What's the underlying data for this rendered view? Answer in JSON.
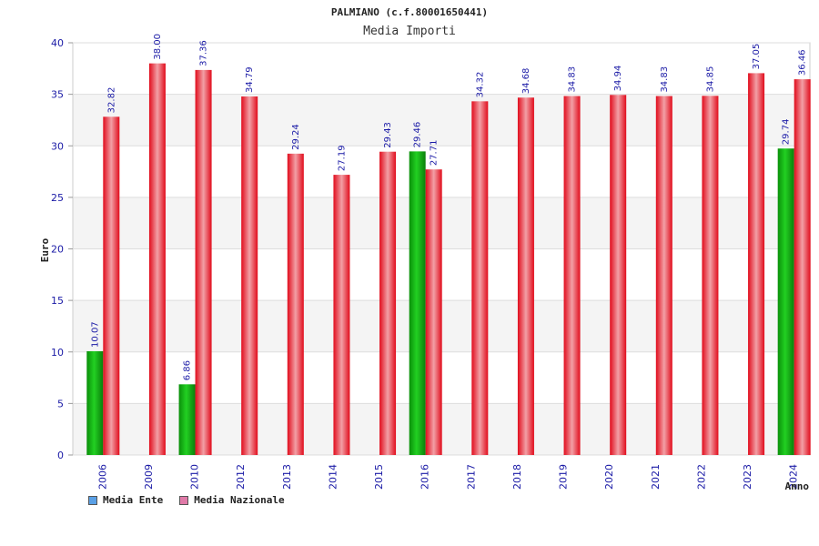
{
  "chart_data": {
    "type": "bar",
    "title": "PALMIANO (c.f.80001650441)",
    "subtitle": "Media Importi",
    "ylabel": "Euro",
    "xlabel": "Anno",
    "ylim": [
      0,
      40
    ],
    "yticks": [
      0,
      5,
      10,
      15,
      20,
      25,
      30,
      35,
      40
    ],
    "categories": [
      "2006",
      "2009",
      "2010",
      "2012",
      "2013",
      "2014",
      "2015",
      "2016",
      "2017",
      "2018",
      "2019",
      "2020",
      "2021",
      "2022",
      "2023",
      "2024"
    ],
    "series": [
      {
        "name": "Media Ente",
        "color": "#11aa11",
        "legend_color": "#5aa0e6",
        "values": [
          10.07,
          null,
          6.86,
          null,
          null,
          null,
          null,
          29.46,
          null,
          null,
          null,
          null,
          null,
          null,
          null,
          29.74
        ],
        "labels": [
          "10.07",
          "",
          "6.86",
          "",
          "",
          "",
          "",
          "29.46",
          "",
          "",
          "",
          "",
          "",
          "",
          "",
          "29.74"
        ]
      },
      {
        "name": "Media Nazionale",
        "color": "#ee1111",
        "legend_color": "#e07aa8",
        "values": [
          32.82,
          38.0,
          37.36,
          34.79,
          29.24,
          27.19,
          29.43,
          27.71,
          34.32,
          34.68,
          34.83,
          34.94,
          34.83,
          34.85,
          37.05,
          36.46
        ],
        "labels": [
          "32.82",
          "38.00",
          "37.36",
          "34.79",
          "29.24",
          "27.19",
          "29.43",
          "27.71",
          "34.32",
          "34.68",
          "34.83",
          "34.94",
          "34.83",
          "34.85",
          "37.05",
          "36.46"
        ]
      }
    ],
    "grid": true,
    "legend_position": "bottom-left"
  }
}
